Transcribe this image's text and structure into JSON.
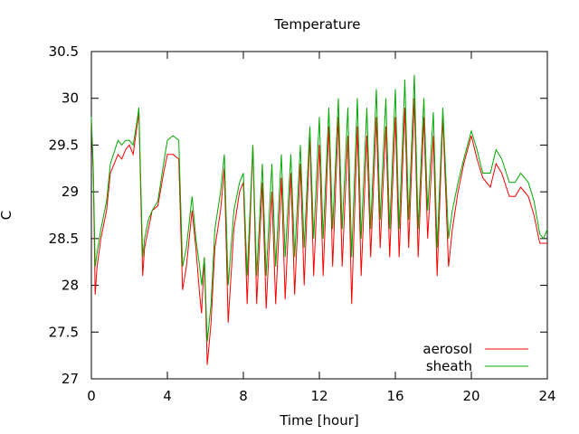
{
  "chart_data": {
    "type": "line",
    "title": "Temperature",
    "xlabel": "Time [hour]",
    "ylabel": "C",
    "xlim": [
      0,
      24
    ],
    "ylim": [
      27,
      30.5
    ],
    "xticks": [
      0,
      4,
      8,
      12,
      16,
      20,
      24
    ],
    "yticks": [
      27,
      27.5,
      28,
      28.5,
      29,
      29.5,
      30,
      30.5
    ],
    "xtick_labels": [
      "0",
      "4",
      "8",
      "12",
      "16",
      "20",
      "24"
    ],
    "ytick_labels": [
      "27",
      "27.5",
      "28",
      "28.5",
      "29",
      "29.5",
      "30",
      "30.5"
    ],
    "grid": false,
    "legend_position": "bottom-right",
    "series": [
      {
        "name": "aerosol",
        "color": "#ff0000",
        "x": [
          0,
          0.1,
          0.2,
          0.3,
          0.5,
          0.8,
          1.0,
          1.4,
          1.6,
          1.8,
          2.0,
          2.2,
          2.4,
          2.5,
          2.7,
          2.8,
          3.0,
          3.2,
          3.5,
          3.8,
          4.0,
          4.3,
          4.6,
          4.8,
          5.0,
          5.3,
          5.5,
          5.7,
          5.8,
          5.95,
          6.1,
          6.3,
          6.5,
          6.8,
          7.0,
          7.2,
          7.5,
          7.8,
          8.0,
          8.2,
          8.5,
          8.7,
          9.0,
          9.2,
          9.5,
          9.7,
          10.0,
          10.2,
          10.5,
          10.7,
          11.0,
          11.2,
          11.5,
          11.7,
          12.0,
          12.2,
          12.5,
          12.7,
          13.0,
          13.2,
          13.5,
          13.7,
          14.0,
          14.2,
          14.5,
          14.7,
          15.0,
          15.2,
          15.5,
          15.7,
          16.0,
          16.2,
          16.5,
          16.7,
          17.0,
          17.2,
          17.5,
          17.7,
          18.0,
          18.2,
          18.5,
          18.8,
          19.0,
          19.3,
          19.6,
          20.0,
          20.3,
          20.6,
          21.0,
          21.3,
          21.6,
          22.0,
          22.3,
          22.6,
          23.0,
          23.3,
          23.6,
          23.8,
          24.0
        ],
        "values": [
          29.75,
          29.2,
          27.9,
          28.2,
          28.5,
          28.8,
          29.2,
          29.4,
          29.35,
          29.45,
          29.5,
          29.4,
          29.7,
          29.85,
          28.1,
          28.4,
          28.6,
          28.8,
          28.85,
          29.2,
          29.4,
          29.4,
          29.35,
          27.95,
          28.2,
          28.8,
          28.4,
          27.9,
          27.7,
          28.3,
          27.15,
          27.6,
          28.4,
          28.8,
          29.25,
          27.6,
          28.6,
          29.0,
          29.1,
          27.8,
          29.5,
          27.8,
          29.1,
          27.75,
          29.0,
          27.8,
          29.15,
          27.85,
          29.2,
          27.9,
          29.3,
          28.0,
          29.6,
          28.1,
          29.5,
          28.1,
          29.7,
          28.2,
          29.8,
          28.2,
          29.6,
          27.8,
          29.7,
          28.1,
          29.6,
          28.3,
          29.8,
          28.4,
          29.7,
          28.3,
          29.8,
          28.3,
          29.9,
          28.4,
          30.0,
          28.3,
          29.8,
          28.5,
          29.6,
          28.1,
          29.8,
          28.2,
          28.6,
          29.0,
          29.3,
          29.6,
          29.35,
          29.15,
          29.05,
          29.3,
          29.2,
          28.95,
          28.95,
          29.05,
          28.95,
          28.75,
          28.45,
          28.45,
          28.45
        ]
      },
      {
        "name": "sheath",
        "color": "#00aa00",
        "x": [
          0,
          0.1,
          0.2,
          0.3,
          0.5,
          0.8,
          1.0,
          1.4,
          1.6,
          1.8,
          2.0,
          2.2,
          2.4,
          2.5,
          2.7,
          2.8,
          3.0,
          3.2,
          3.5,
          3.8,
          4.0,
          4.3,
          4.6,
          4.8,
          5.0,
          5.3,
          5.5,
          5.7,
          5.8,
          5.95,
          6.1,
          6.3,
          6.5,
          6.8,
          7.0,
          7.2,
          7.5,
          7.8,
          8.0,
          8.2,
          8.5,
          8.7,
          9.0,
          9.2,
          9.5,
          9.7,
          10.0,
          10.2,
          10.5,
          10.7,
          11.0,
          11.2,
          11.5,
          11.7,
          12.0,
          12.2,
          12.5,
          12.7,
          13.0,
          13.2,
          13.5,
          13.7,
          14.0,
          14.2,
          14.5,
          14.7,
          15.0,
          15.2,
          15.5,
          15.7,
          16.0,
          16.2,
          16.5,
          16.7,
          17.0,
          17.2,
          17.5,
          17.7,
          18.0,
          18.2,
          18.5,
          18.8,
          19.0,
          19.3,
          19.6,
          20.0,
          20.3,
          20.6,
          21.0,
          21.3,
          21.6,
          22.0,
          22.3,
          22.6,
          23.0,
          23.3,
          23.6,
          23.8,
          24.0
        ],
        "values": [
          29.8,
          29.25,
          28.2,
          28.35,
          28.6,
          28.9,
          29.3,
          29.55,
          29.5,
          29.55,
          29.55,
          29.5,
          29.75,
          29.9,
          28.3,
          28.5,
          28.7,
          28.8,
          28.9,
          29.3,
          29.55,
          29.6,
          29.55,
          28.2,
          28.4,
          28.95,
          28.5,
          28.2,
          28.0,
          28.3,
          27.4,
          27.8,
          28.6,
          29.0,
          29.4,
          28.0,
          28.8,
          29.1,
          29.2,
          28.1,
          29.5,
          28.1,
          29.3,
          28.1,
          29.3,
          28.2,
          29.4,
          28.3,
          29.4,
          28.3,
          29.5,
          28.4,
          29.7,
          28.5,
          29.8,
          28.5,
          29.9,
          28.6,
          30.0,
          28.6,
          29.9,
          28.3,
          30.0,
          28.5,
          29.9,
          28.6,
          30.1,
          28.7,
          30.0,
          28.6,
          30.1,
          28.6,
          30.2,
          28.7,
          30.25,
          28.6,
          30.0,
          28.8,
          29.85,
          28.4,
          29.9,
          28.5,
          28.8,
          29.1,
          29.35,
          29.65,
          29.45,
          29.2,
          29.2,
          29.45,
          29.35,
          29.1,
          29.1,
          29.2,
          29.1,
          28.9,
          28.55,
          28.5,
          28.6
        ]
      }
    ]
  }
}
